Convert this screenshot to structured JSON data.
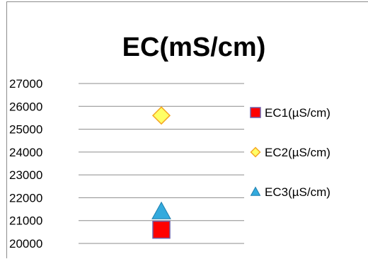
{
  "chart_data": {
    "type": "scatter",
    "title": "EC(mS/cm)",
    "xlabel": "",
    "ylabel": "",
    "ylim": [
      20000,
      27000
    ],
    "y_ticks": [
      "27000",
      "26000",
      "25000",
      "24000",
      "23000",
      "22000",
      "21000",
      "20000"
    ],
    "x": [
      1
    ],
    "grid": true,
    "legend_position": "right",
    "series": [
      {
        "name": "EC1(µS/cm)",
        "marker": "square",
        "color": "#ff0000",
        "edge_color": "#6f5fa8",
        "values": [
          20600
        ]
      },
      {
        "name": "EC2(µS/cm)",
        "marker": "diamond",
        "color": "#ffff66",
        "edge_color": "#f5a623",
        "values": [
          25600
        ]
      },
      {
        "name": "EC3(µS/cm)",
        "marker": "triangle",
        "color": "#33aadd",
        "edge_color": "#1f7fae",
        "values": [
          21400
        ]
      }
    ]
  }
}
